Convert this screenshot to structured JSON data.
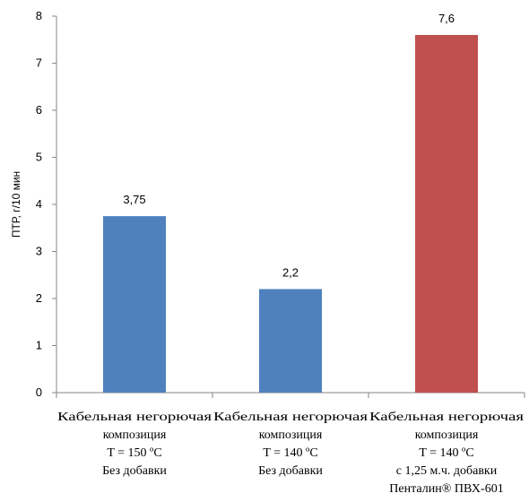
{
  "chart_data": {
    "type": "bar",
    "ylabel": "ПТР, г/10 мин",
    "xlabel": "",
    "ylim": [
      0,
      8
    ],
    "yticks": [
      0,
      1,
      2,
      3,
      4,
      5,
      6,
      7,
      8
    ],
    "grid": false,
    "categories": [
      [
        "Кабельная негорючая",
        "композиция",
        "T = 150 ºС",
        "Без добавки"
      ],
      [
        "Кабельная негорючая",
        "композиция",
        "T = 140 ºС",
        "Без добавки"
      ],
      [
        "Кабельная негорючая",
        "композиция",
        "T = 140 ºС",
        "с 1,25 м.ч. добавки",
        "Пенталин® ПВХ-601"
      ]
    ],
    "values": [
      3.75,
      2.2,
      7.6
    ],
    "data_labels": [
      "3,75",
      "2,2",
      "7,6"
    ],
    "colors": [
      "#4F81BD",
      "#4F81BD",
      "#C0504D"
    ]
  }
}
